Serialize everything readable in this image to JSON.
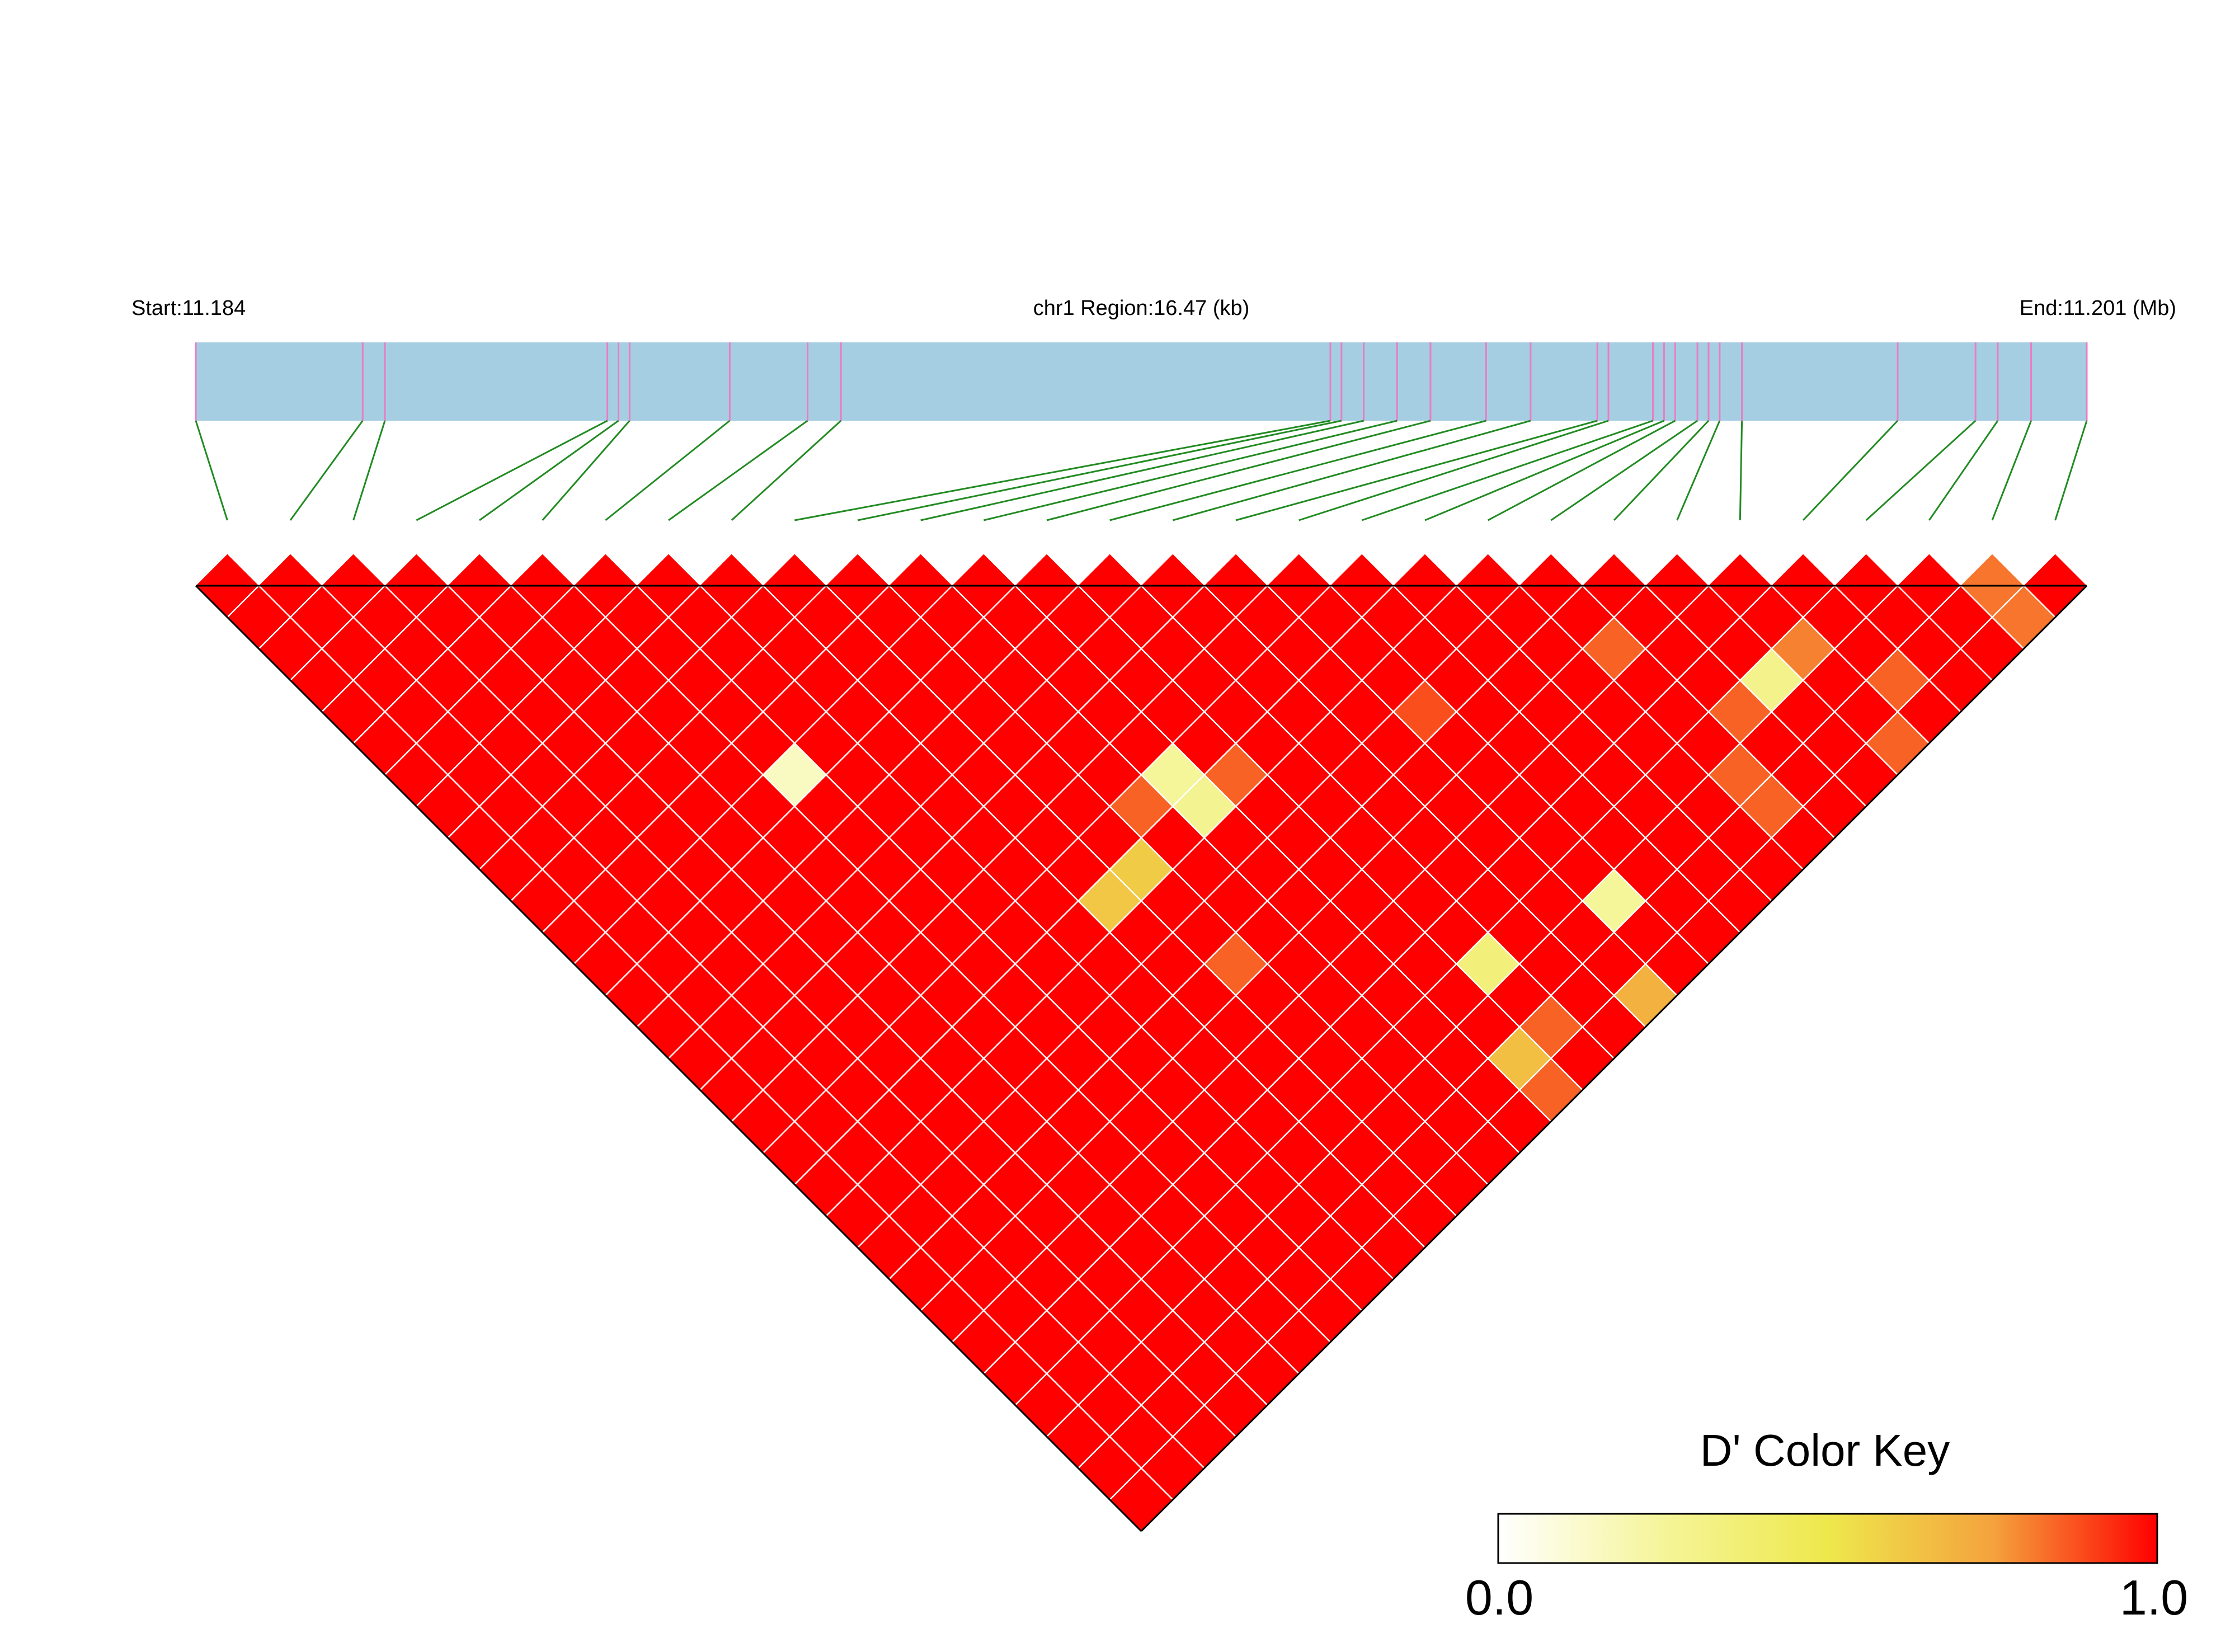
{
  "header": {
    "start_label": "Start:11.184",
    "region_label": "chr1 Region:16.47 (kb)",
    "end_label": "End:11.201 (Mb)"
  },
  "colors": {
    "region_bar": "#A6CEE3",
    "snp_marker": "#E87DC5",
    "connector": "#228B22",
    "cell_max": "#FF0000",
    "grid_line": "#FFFFFF",
    "outline": "#000000"
  },
  "color_key": {
    "title": "D' Color Key",
    "min_label": "0.0",
    "max_label": "1.0",
    "min": 0.0,
    "max": 1.0,
    "stops": [
      "#FFFFFF",
      "#F5F59A",
      "#EEE84C",
      "#F4A33D",
      "#FF0000"
    ]
  },
  "chart_data": {
    "type": "heatmap",
    "title": "",
    "metric": "D'",
    "chromosome": "chr1",
    "start_mb": 11.184,
    "end_mb": 11.201,
    "region_kb": 16.47,
    "n_snps": 30,
    "snp_positions_mb": [
      11.184,
      11.1855,
      11.1857,
      11.1877,
      11.1878,
      11.1879,
      11.1888,
      11.1895,
      11.1898,
      11.1942,
      11.1943,
      11.1945,
      11.1948,
      11.1951,
      11.1956,
      11.196,
      11.1966,
      11.1967,
      11.1971,
      11.1972,
      11.1973,
      11.1975,
      11.1976,
      11.1977,
      11.1979,
      11.1993,
      11.2,
      11.2002,
      11.2005,
      11.201
    ],
    "default_value": 1.0,
    "values": [
      {
        "i": 6,
        "j": 12,
        "value": 0.15
      },
      {
        "i": 11,
        "j": 18,
        "value": 0.85
      },
      {
        "i": 12,
        "j": 18,
        "value": 0.25
      },
      {
        "i": 12,
        "j": 19,
        "value": 0.28
      },
      {
        "i": 9,
        "j": 19,
        "value": 0.62
      },
      {
        "i": 10,
        "j": 19,
        "value": 0.6
      },
      {
        "i": 13,
        "j": 19,
        "value": 0.85
      },
      {
        "i": 10,
        "j": 22,
        "value": 0.85
      },
      {
        "i": 17,
        "j": 21,
        "value": 0.88
      },
      {
        "i": 21,
        "j": 23,
        "value": 0.85
      },
      {
        "i": 24,
        "j": 26,
        "value": 0.8
      },
      {
        "i": 28,
        "j": 29,
        "value": 0.82
      },
      {
        "i": 25,
        "j": 28,
        "value": 0.85
      },
      {
        "i": 22,
        "j": 26,
        "value": 0.85
      },
      {
        "i": 23,
        "j": 26,
        "value": 0.3
      },
      {
        "i": 21,
        "j": 27,
        "value": 0.85
      },
      {
        "i": 21,
        "j": 28,
        "value": 0.85
      },
      {
        "i": 24,
        "j": 29,
        "value": 0.85
      },
      {
        "i": 14,
        "j": 26,
        "value": 0.35
      },
      {
        "i": 13,
        "j": 28,
        "value": 0.65
      },
      {
        "i": 14,
        "j": 28,
        "value": 0.85
      },
      {
        "i": 13,
        "j": 29,
        "value": 0.85
      },
      {
        "i": 16,
        "j": 29,
        "value": 0.7
      },
      {
        "i": 17,
        "j": 27,
        "value": 0.25
      }
    ]
  }
}
